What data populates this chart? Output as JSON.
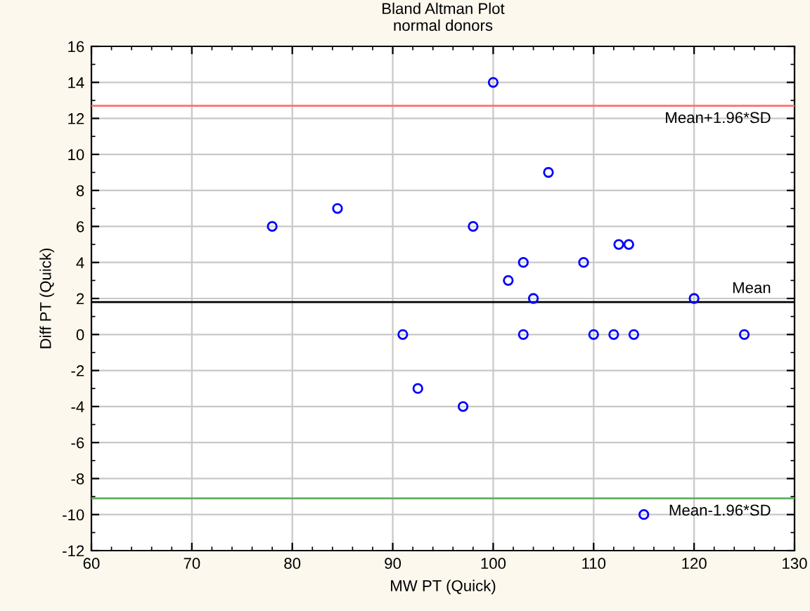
{
  "chart_data": {
    "type": "scatter",
    "title": "Bland Altman Plot\nnormal donors",
    "xlabel": "MW PT (Quick)",
    "ylabel": "Diff PT (Quick)",
    "x": [
      78,
      84.5,
      91,
      92.5,
      97,
      98,
      100,
      101.5,
      103,
      103,
      104,
      105.5,
      109,
      110,
      112,
      112.5,
      113.5,
      114,
      115,
      120,
      125
    ],
    "series": [
      {
        "color": "#0000ff",
        "values": [
          6,
          7,
          0,
          -3,
          -4,
          6,
          14,
          3,
          4,
          0,
          2,
          9,
          4,
          0,
          0,
          5,
          5,
          0,
          -10,
          2,
          0
        ]
      }
    ],
    "marker": "circle",
    "xlim": [
      60,
      130
    ],
    "xticks": [
      60,
      70,
      80,
      90,
      100,
      110,
      120,
      130
    ],
    "ylim": [
      -12,
      16
    ],
    "yticks": [
      -12,
      -10,
      -8,
      -6,
      -4,
      -2,
      0,
      2,
      4,
      6,
      8,
      10,
      12,
      14,
      16
    ],
    "grid": true,
    "ref_lines": [
      {
        "axis": "y",
        "value": 12.7,
        "label": "Mean+1.96*SD",
        "color": "#ff7070"
      },
      {
        "axis": "y",
        "value": 1.8,
        "label": "Mean",
        "color": "#000000"
      },
      {
        "axis": "y",
        "value": -9.1,
        "label": "Mean-1.96*SD",
        "color": "#60b060"
      }
    ]
  }
}
